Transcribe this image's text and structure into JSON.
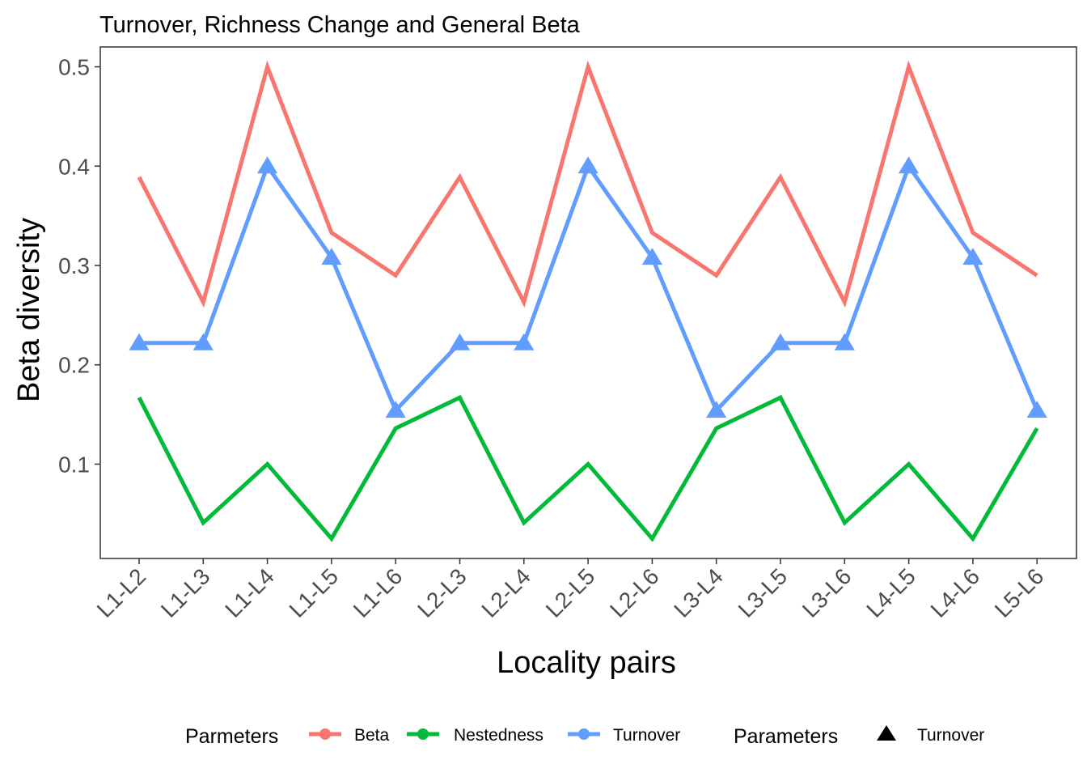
{
  "chart_data": {
    "type": "line",
    "title": "Turnover, Richness Change and General Beta",
    "xlabel": "Locality pairs",
    "ylabel": "Beta diversity",
    "categories": [
      "L1-L2",
      "L1-L3",
      "L1-L4",
      "L1-L5",
      "L1-L6",
      "L2-L3",
      "L2-L4",
      "L2-L5",
      "L2-L6",
      "L3-L4",
      "L3-L5",
      "L3-L6",
      "L4-L5",
      "L4-L6",
      "L5-L6"
    ],
    "yticks": [
      "0.1",
      "0.2",
      "0.3",
      "0.4",
      "0.5"
    ],
    "ylim": [
      0.005,
      0.52
    ],
    "grid": false,
    "legend_position": "bottom",
    "series": [
      {
        "name": "Beta",
        "color": "#F8766D",
        "marker": "none",
        "values": [
          0.389,
          0.263,
          0.5,
          0.333,
          0.29,
          0.389,
          0.263,
          0.5,
          0.333,
          0.29,
          0.389,
          0.263,
          0.5,
          0.333,
          0.29
        ]
      },
      {
        "name": "Nestedness",
        "color": "#00BA38",
        "marker": "none",
        "values": [
          0.167,
          0.041,
          0.1,
          0.025,
          0.136,
          0.167,
          0.041,
          0.1,
          0.025,
          0.136,
          0.167,
          0.041,
          0.1,
          0.025,
          0.136
        ]
      },
      {
        "name": "Turnover",
        "color": "#619CFF",
        "marker": "triangle",
        "values": [
          0.222,
          0.222,
          0.4,
          0.308,
          0.154,
          0.222,
          0.222,
          0.4,
          0.308,
          0.154,
          0.222,
          0.222,
          0.4,
          0.308,
          0.154
        ]
      }
    ],
    "legend": {
      "color_title": "Parmeters",
      "color_items": [
        "Beta",
        "Nestedness",
        "Turnover"
      ],
      "shape_title": "Parameters",
      "shape_items": [
        "Turnover"
      ]
    }
  }
}
